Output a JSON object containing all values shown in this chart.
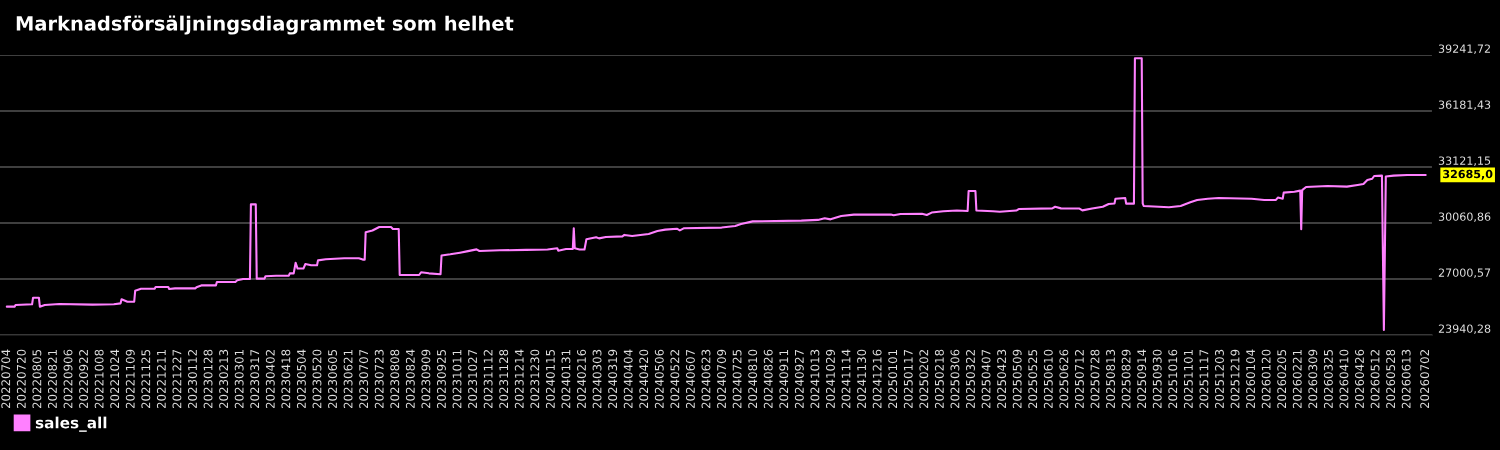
{
  "chart_data": {
    "type": "line",
    "title": "Marknadsförsäljningsdiagrammet som helhet",
    "x": [
      "2022-07-04",
      "2022-07-12",
      "2022-07-13",
      "2022-07-30",
      "2022-07-31",
      "2022-08-06",
      "2022-08-07",
      "2022-08-12",
      "2022-08-27",
      "2022-09-30",
      "2022-10-22",
      "2022-10-29",
      "2022-10-30",
      "2022-11-05",
      "2022-11-12",
      "2022-11-13",
      "2022-11-19",
      "2022-12-03",
      "2022-12-04",
      "2022-12-17",
      "2022-12-18",
      "2022-12-24",
      "2023-01-14",
      "2023-01-15",
      "2023-01-20",
      "2023-02-04",
      "2023-02-05",
      "2023-02-24",
      "2023-02-26",
      "2023-03-04",
      "2023-03-11",
      "2023-03-12",
      "2023-03-17",
      "2023-03-18",
      "2023-03-26",
      "2023-03-27",
      "2023-04-07",
      "2023-04-20",
      "2023-04-21",
      "2023-04-25",
      "2023-04-27",
      "2023-04-29",
      "2023-05-05",
      "2023-05-07",
      "2023-05-13",
      "2023-05-19",
      "2023-05-20",
      "2023-05-28",
      "2023-06-16",
      "2023-07-01",
      "2023-07-05",
      "2023-07-07",
      "2023-07-08",
      "2023-07-15",
      "2023-07-22",
      "2023-08-03",
      "2023-08-05",
      "2023-08-11",
      "2023-08-12",
      "2023-09-01",
      "2023-09-03",
      "2023-09-11",
      "2023-09-23",
      "2023-09-24",
      "2023-10-03",
      "2023-10-13",
      "2023-10-20",
      "2023-10-30",
      "2023-11-02",
      "2023-11-23",
      "2023-12-20",
      "2024-01-11",
      "2024-01-21",
      "2024-01-22",
      "2024-01-30",
      "2024-02-06",
      "2024-02-07",
      "2024-02-08",
      "2024-02-13",
      "2024-02-18",
      "2024-02-20",
      "2024-03-01",
      "2024-03-04",
      "2024-03-11",
      "2024-03-28",
      "2024-03-30",
      "2024-04-07",
      "2024-04-24",
      "2024-05-03",
      "2024-05-11",
      "2024-05-23",
      "2024-05-26",
      "2024-05-30",
      "2024-07-08",
      "2024-07-22",
      "2024-07-28",
      "2024-08-09",
      "2024-09-28",
      "2024-10-15",
      "2024-10-22",
      "2024-10-28",
      "2024-11-08",
      "2024-11-21",
      "2024-12-29",
      "2025-01-01",
      "2025-01-08",
      "2025-01-30",
      "2025-02-04",
      "2025-02-09",
      "2025-02-21",
      "2025-03-07",
      "2025-03-18",
      "2025-03-19",
      "2025-03-26",
      "2025-03-27",
      "2025-04-13",
      "2025-04-20",
      "2025-05-07",
      "2025-05-10",
      "2025-06-13",
      "2025-06-16",
      "2025-06-22",
      "2025-07-11",
      "2025-07-14",
      "2025-07-24",
      "2025-08-04",
      "2025-08-10",
      "2025-08-16",
      "2025-08-17",
      "2025-08-27",
      "2025-08-28",
      "2025-09-05",
      "2025-09-06",
      "2025-09-13",
      "2025-09-14",
      "2025-09-15",
      "2025-10-11",
      "2025-10-23",
      "2025-11-02",
      "2025-11-09",
      "2025-11-20",
      "2025-12-01",
      "2026-01-04",
      "2026-01-17",
      "2026-01-29",
      "2026-01-31",
      "2026-02-05",
      "2026-02-06",
      "2026-02-17",
      "2026-02-23",
      "2026-02-24",
      "2026-02-25",
      "2026-03-01",
      "2026-03-23",
      "2026-04-12",
      "2026-04-23",
      "2026-04-29",
      "2026-05-03",
      "2026-05-08",
      "2026-05-10",
      "2026-05-18",
      "2026-05-20",
      "2026-05-22",
      "2026-05-30",
      "2026-06-13",
      "2026-07-02"
    ],
    "series": [
      {
        "name": "sales_all",
        "color": "#ff80ff",
        "values": [
          25490,
          25490,
          25580,
          25620,
          25980,
          25980,
          25490,
          25580,
          25630,
          25600,
          25620,
          25670,
          25890,
          25760,
          25760,
          26360,
          26470,
          26470,
          26560,
          26560,
          26450,
          26490,
          26490,
          26550,
          26650,
          26650,
          26840,
          26840,
          26930,
          27000,
          27000,
          31080,
          31080,
          27020,
          27020,
          27150,
          27180,
          27180,
          27310,
          27310,
          27890,
          27570,
          27570,
          27820,
          27750,
          27750,
          28020,
          28080,
          28130,
          28130,
          28060,
          28060,
          29550,
          29650,
          29840,
          29840,
          29730,
          29730,
          27220,
          27220,
          27370,
          27310,
          27260,
          28280,
          28350,
          28440,
          28510,
          28620,
          28530,
          28570,
          28590,
          28610,
          28680,
          28550,
          28640,
          28640,
          29770,
          28680,
          28610,
          28610,
          29170,
          29280,
          29220,
          29300,
          29330,
          29410,
          29350,
          29460,
          29620,
          29700,
          29750,
          29660,
          29770,
          29810,
          29900,
          30010,
          30150,
          30190,
          30230,
          30320,
          30260,
          30440,
          30520,
          30520,
          30480,
          30550,
          30570,
          30500,
          30630,
          30700,
          30740,
          30720,
          31810,
          31810,
          30740,
          30700,
          30680,
          30740,
          30830,
          30860,
          30950,
          30860,
          30850,
          30750,
          30850,
          30950,
          31100,
          31130,
          31390,
          31430,
          31120,
          31120,
          39060,
          39060,
          31130,
          30990,
          30920,
          30990,
          31190,
          31320,
          31390,
          31430,
          31390,
          31320,
          31320,
          31450,
          31390,
          31720,
          31770,
          31830,
          29720,
          31860,
          32030,
          32080,
          32050,
          32140,
          32190,
          32410,
          32480,
          32630,
          32650,
          24210,
          32600,
          32650,
          32680,
          32685
        ]
      }
    ],
    "xlim": [
      "2022-06-27",
      "2026-07-09"
    ],
    "xticks": [
      {
        "value": "2022-07-04",
        "label": "20220704"
      },
      {
        "value": "2022-07-20",
        "label": "20220720"
      },
      {
        "value": "2022-08-05",
        "label": "20220805"
      },
      {
        "value": "2022-08-21",
        "label": "20220821"
      },
      {
        "value": "2022-09-06",
        "label": "20220906"
      },
      {
        "value": "2022-09-22",
        "label": "20220922"
      },
      {
        "value": "2022-10-08",
        "label": "20221008"
      },
      {
        "value": "2022-10-24",
        "label": "20221024"
      },
      {
        "value": "2022-11-09",
        "label": "20221109"
      },
      {
        "value": "2022-11-25",
        "label": "20221125"
      },
      {
        "value": "2022-12-11",
        "label": "20221211"
      },
      {
        "value": "2022-12-27",
        "label": "20221227"
      },
      {
        "value": "2023-01-12",
        "label": "20230112"
      },
      {
        "value": "2023-01-28",
        "label": "20230128"
      },
      {
        "value": "2023-02-13",
        "label": "20230213"
      },
      {
        "value": "2023-03-01",
        "label": "20230301"
      },
      {
        "value": "2023-03-17",
        "label": "20230317"
      },
      {
        "value": "2023-04-02",
        "label": "20230402"
      },
      {
        "value": "2023-04-18",
        "label": "20230418"
      },
      {
        "value": "2023-05-04",
        "label": "20230504"
      },
      {
        "value": "2023-05-20",
        "label": "20230520"
      },
      {
        "value": "2023-06-05",
        "label": "20230605"
      },
      {
        "value": "2023-06-21",
        "label": "20230621"
      },
      {
        "value": "2023-07-07",
        "label": "20230707"
      },
      {
        "value": "2023-07-23",
        "label": "20230723"
      },
      {
        "value": "2023-08-08",
        "label": "20230808"
      },
      {
        "value": "2023-08-24",
        "label": "20230824"
      },
      {
        "value": "2023-09-09",
        "label": "20230909"
      },
      {
        "value": "2023-09-25",
        "label": "20230925"
      },
      {
        "value": "2023-10-11",
        "label": "20231011"
      },
      {
        "value": "2023-10-27",
        "label": "20231027"
      },
      {
        "value": "2023-11-12",
        "label": "20231112"
      },
      {
        "value": "2023-11-28",
        "label": "20231128"
      },
      {
        "value": "2023-12-14",
        "label": "20231214"
      },
      {
        "value": "2023-12-30",
        "label": "20231230"
      },
      {
        "value": "2024-01-15",
        "label": "20240115"
      },
      {
        "value": "2024-01-31",
        "label": "20240131"
      },
      {
        "value": "2024-02-16",
        "label": "20240216"
      },
      {
        "value": "2024-03-03",
        "label": "20240303"
      },
      {
        "value": "2024-03-19",
        "label": "20240319"
      },
      {
        "value": "2024-04-04",
        "label": "20240404"
      },
      {
        "value": "2024-04-20",
        "label": "20240420"
      },
      {
        "value": "2024-05-06",
        "label": "20240506"
      },
      {
        "value": "2024-05-22",
        "label": "20240522"
      },
      {
        "value": "2024-06-07",
        "label": "20240607"
      },
      {
        "value": "2024-06-23",
        "label": "20240623"
      },
      {
        "value": "2024-07-09",
        "label": "20240709"
      },
      {
        "value": "2024-07-25",
        "label": "20240725"
      },
      {
        "value": "2024-08-10",
        "label": "20240810"
      },
      {
        "value": "2024-08-26",
        "label": "20240826"
      },
      {
        "value": "2024-09-11",
        "label": "20240911"
      },
      {
        "value": "2024-09-27",
        "label": "20240927"
      },
      {
        "value": "2024-10-13",
        "label": "20241013"
      },
      {
        "value": "2024-10-29",
        "label": "20241029"
      },
      {
        "value": "2024-11-14",
        "label": "20241114"
      },
      {
        "value": "2024-11-30",
        "label": "20241130"
      },
      {
        "value": "2024-12-16",
        "label": "20241216"
      },
      {
        "value": "2025-01-01",
        "label": "20250101"
      },
      {
        "value": "2025-01-17",
        "label": "20250117"
      },
      {
        "value": "2025-02-02",
        "label": "20250202"
      },
      {
        "value": "2025-02-18",
        "label": "20250218"
      },
      {
        "value": "2025-03-06",
        "label": "20250306"
      },
      {
        "value": "2025-03-22",
        "label": "20250322"
      },
      {
        "value": "2025-04-07",
        "label": "20250407"
      },
      {
        "value": "2025-04-23",
        "label": "20250423"
      },
      {
        "value": "2025-05-09",
        "label": "20250509"
      },
      {
        "value": "2025-05-25",
        "label": "20250525"
      },
      {
        "value": "2025-06-10",
        "label": "20250610"
      },
      {
        "value": "2025-06-26",
        "label": "20250626"
      },
      {
        "value": "2025-07-12",
        "label": "20250712"
      },
      {
        "value": "2025-07-28",
        "label": "20250728"
      },
      {
        "value": "2025-08-13",
        "label": "20250813"
      },
      {
        "value": "2025-08-29",
        "label": "20250829"
      },
      {
        "value": "2025-09-14",
        "label": "20250914"
      },
      {
        "value": "2025-09-30",
        "label": "20250930"
      },
      {
        "value": "2025-10-16",
        "label": "20251016"
      },
      {
        "value": "2025-11-01",
        "label": "20251101"
      },
      {
        "value": "2025-11-17",
        "label": "20251117"
      },
      {
        "value": "2025-12-03",
        "label": "20251203"
      },
      {
        "value": "2025-12-19",
        "label": "20251219"
      },
      {
        "value": "2026-01-04",
        "label": "20260104"
      },
      {
        "value": "2026-01-20",
        "label": "20260120"
      },
      {
        "value": "2026-02-05",
        "label": "20260205"
      },
      {
        "value": "2026-02-21",
        "label": "20260221"
      },
      {
        "value": "2026-03-09",
        "label": "20260309"
      },
      {
        "value": "2026-03-25",
        "label": "20260325"
      },
      {
        "value": "2026-04-10",
        "label": "20260410"
      },
      {
        "value": "2026-04-26",
        "label": "20260426"
      },
      {
        "value": "2026-05-12",
        "label": "20260512"
      },
      {
        "value": "2026-05-28",
        "label": "20260528"
      },
      {
        "value": "2026-06-13",
        "label": "20260613"
      },
      {
        "value": "2026-07-02",
        "label": "20260702"
      }
    ],
    "ylim": [
      23940.28,
      39241.72
    ],
    "yticks": [
      {
        "value": 23940.28,
        "label": "23940,28"
      },
      {
        "value": 27000.57,
        "label": "27000,57"
      },
      {
        "value": 30060.86,
        "label": "30060,86"
      },
      {
        "value": 33121.15,
        "label": "33121,15"
      },
      {
        "value": 36181.43,
        "label": "36181,43"
      },
      {
        "value": 39241.72,
        "label": "39241,72"
      }
    ],
    "grid": "y",
    "legend": "bottom left",
    "annotations": [
      {
        "text": "32685,0",
        "x": "2026-07-02",
        "y": 32685
      }
    ]
  }
}
